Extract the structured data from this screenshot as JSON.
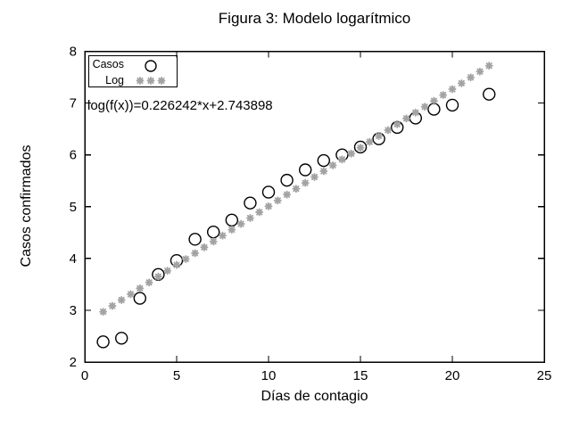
{
  "chart_data": {
    "type": "scatter",
    "title": "Figura 3: Modelo logarítmico",
    "xlabel": "Días de contagio",
    "ylabel": "Casos confirmados",
    "xlim": [
      0,
      25
    ],
    "ylim": [
      2,
      8
    ],
    "xticks": [
      0,
      5,
      10,
      15,
      20,
      25
    ],
    "yticks": [
      2,
      3,
      4,
      5,
      6,
      7,
      8
    ],
    "grid": false,
    "legend_position": "top-left-inside",
    "annotation": "log(f(x))=0.226242*x+2.743898",
    "colors": {
      "casos": "#000000",
      "log": "#a3a3a3"
    },
    "series": [
      {
        "name": "Casos",
        "marker": "open-circle",
        "color": "#000000",
        "points": [
          [
            1,
            2.39
          ],
          [
            2,
            2.46
          ],
          [
            3,
            3.23
          ],
          [
            4,
            3.69
          ],
          [
            5,
            3.96
          ],
          [
            6,
            4.37
          ],
          [
            7,
            4.51
          ],
          [
            8,
            4.74
          ],
          [
            9,
            5.07
          ],
          [
            10,
            5.28
          ],
          [
            11,
            5.51
          ],
          [
            12,
            5.71
          ],
          [
            13,
            5.89
          ],
          [
            14,
            6.0
          ],
          [
            15,
            6.15
          ],
          [
            16,
            6.31
          ],
          [
            17,
            6.53
          ],
          [
            18,
            6.71
          ],
          [
            19,
            6.88
          ],
          [
            20,
            6.96
          ],
          [
            22,
            7.17
          ]
        ]
      },
      {
        "name": "Log",
        "marker": "asterisk",
        "color": "#a3a3a3",
        "fit": {
          "slope": 0.226242,
          "intercept": 2.743898,
          "x_start": 1,
          "x_end": 22,
          "x_step": 0.5
        }
      }
    ]
  }
}
